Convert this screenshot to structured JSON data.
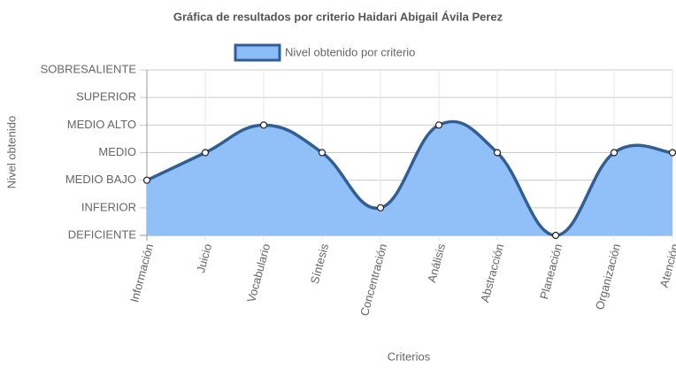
{
  "chart_data": {
    "type": "line",
    "title": "Gráfica de resultados por criterio Haidari Abigail Ávila Perez",
    "x_label": "Criterios",
    "y_label": "Nivel obtenido",
    "categories": [
      "Información",
      "Juicio",
      "Vocabulario",
      "Síntesis",
      "Concentración",
      "Análisis",
      "Abstracción",
      "Planeación",
      "Organización",
      "Atención"
    ],
    "series": [
      {
        "name": "Nivel obtenido por criterio",
        "color": "#2f5f94",
        "fill": "#8bbdf8",
        "values": [
          2,
          3,
          4,
          3,
          1,
          4,
          3,
          0,
          3,
          3
        ]
      }
    ],
    "ylim": [
      0,
      6
    ],
    "yticks": [
      {
        "value": 0,
        "label": "DEFICIENTE"
      },
      {
        "value": 1,
        "label": "INFERIOR"
      },
      {
        "value": 2,
        "label": "MEDIO BAJO"
      },
      {
        "value": 3,
        "label": "MEDIO"
      },
      {
        "value": 4,
        "label": "MEDIO ALTO"
      },
      {
        "value": 5,
        "label": "SUPERIOR"
      },
      {
        "value": 6,
        "label": "SOBRESALIENTE"
      }
    ],
    "grid": true,
    "legend": "top"
  }
}
